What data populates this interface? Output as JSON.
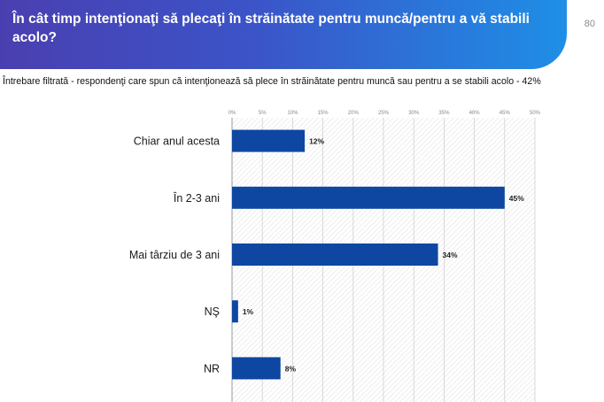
{
  "header": {
    "title": "În cât timp intenţionaţi să plecaţi în străinătate pentru muncă/pentru a vă stabili acolo?",
    "page_number": "80"
  },
  "subtitle": "Întrebare filtrată - respondenţi care spun că intenţionează să plece în străinătate pentru muncă sau pentru a se stabili acolo - 42%",
  "colors": {
    "bar": "#0d47a1",
    "banner_start": "#4a3fb0",
    "banner_end": "#1e8fe6"
  },
  "chart_data": {
    "type": "bar",
    "orientation": "horizontal",
    "categories": [
      "Chiar anul acesta",
      "În 2-3 ani",
      "Mai târziu de 3 ani",
      "NŞ",
      "NR"
    ],
    "values": [
      12,
      45,
      34,
      1,
      8
    ],
    "value_labels": [
      "12%",
      "45%",
      "34%",
      "1%",
      "8%"
    ],
    "xlim": [
      0,
      50
    ],
    "xticks": [
      0,
      5,
      10,
      15,
      20,
      25,
      30,
      35,
      40,
      45,
      50
    ],
    "xtick_labels": [
      "0%",
      "5%",
      "10%",
      "15%",
      "20%",
      "25%",
      "30%",
      "35%",
      "40%",
      "45%",
      "50%"
    ],
    "tick_position": "top",
    "grid": true
  }
}
